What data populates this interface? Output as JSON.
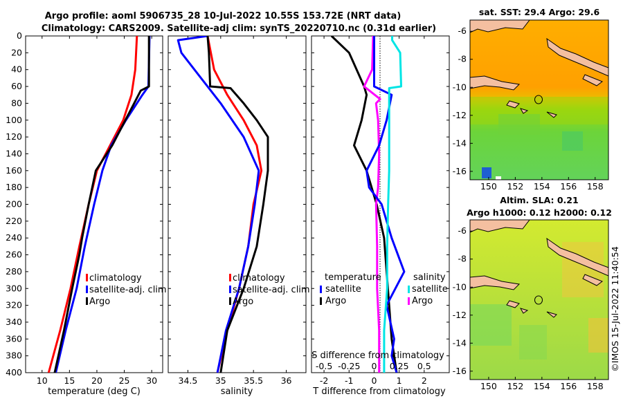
{
  "title_line1": "Argo profile: aoml 5906735_28 10-Jul-2022 10.55S 153.72E (NRT data)",
  "title_line2": "Climatology: CARS2009. Satellite-adj clim: synTS_20220710.nc (0.31d earlier)",
  "watermark": "©IMOS 15-Jul-2022 11:40:54",
  "colors": {
    "climatology": "#ff0000",
    "satellite": "#0000ff",
    "argo": "#000000",
    "t_diff": "#00e5e5",
    "s_diff": "#ff00ff",
    "land": "#f4bfa0"
  },
  "legend": {
    "climatology": "climatology",
    "satellite_adj": "satellite-adj. clim",
    "argo": "Argo",
    "temperature": "temperature",
    "salinity": "salinity",
    "satellite": "satellite"
  },
  "chart_data": [
    {
      "type": "line",
      "title": "",
      "xlabel": "temperature (deg C)",
      "ylabel": "",
      "xlim": [
        7,
        32
      ],
      "ylim": [
        400,
        0
      ],
      "xticks": [
        "10",
        "15",
        "20",
        "25",
        "30"
      ],
      "yticks": [
        "0",
        "20",
        "40",
        "60",
        "80",
        "100",
        "120",
        "140",
        "160",
        "180",
        "200",
        "220",
        "240",
        "260",
        "280",
        "300",
        "320",
        "340",
        "360",
        "380",
        "400"
      ],
      "series": [
        {
          "name": "climatology",
          "depth": [
            0,
            40,
            70,
            100,
            130,
            160,
            200,
            250,
            300,
            350,
            400
          ],
          "values": [
            27.3,
            27.0,
            26.3,
            24.8,
            22.4,
            20.0,
            18.5,
            16.8,
            15.2,
            13.3,
            11.2
          ]
        },
        {
          "name": "satellite-adj. clim",
          "depth": [
            0,
            60,
            70,
            100,
            130,
            160,
            200,
            250,
            300,
            350,
            400
          ],
          "values": [
            29.6,
            29.4,
            28.3,
            25.3,
            22.6,
            21.0,
            19.5,
            17.8,
            16.3,
            14.3,
            12.5
          ]
        },
        {
          "name": "Argo",
          "depth": [
            0,
            60,
            65,
            80,
            100,
            130,
            160,
            200,
            240,
            260,
            300,
            350,
            400
          ],
          "values": [
            29.5,
            29.5,
            28.0,
            26.8,
            25.2,
            22.8,
            19.8,
            18.5,
            17.3,
            16.8,
            15.5,
            14.0,
            12.3
          ]
        }
      ]
    },
    {
      "type": "line",
      "title": "",
      "xlabel": "salinity",
      "ylabel": "",
      "xlim": [
        34.2,
        36.3
      ],
      "ylim": [
        400,
        0
      ],
      "xticks": [
        "34.5",
        "35",
        "35.5",
        "36"
      ],
      "series": [
        {
          "name": "climatology",
          "depth": [
            0,
            40,
            70,
            100,
            130,
            160,
            200,
            250,
            300,
            350,
            400
          ],
          "values": [
            34.8,
            34.9,
            35.1,
            35.35,
            35.55,
            35.62,
            35.5,
            35.42,
            35.28,
            35.1,
            34.95
          ]
        },
        {
          "name": "satellite-adj. clim",
          "depth": [
            0,
            5,
            20,
            50,
            80,
            120,
            160,
            200,
            250,
            300,
            350,
            400
          ],
          "values": [
            34.8,
            34.35,
            34.4,
            34.7,
            35.0,
            35.35,
            35.58,
            35.52,
            35.42,
            35.28,
            35.08,
            34.95
          ]
        },
        {
          "name": "Argo",
          "depth": [
            0,
            20,
            60,
            62,
            80,
            100,
            120,
            160,
            200,
            250,
            300,
            350,
            400
          ],
          "values": [
            34.8,
            34.82,
            34.84,
            35.15,
            35.35,
            35.55,
            35.72,
            35.72,
            35.65,
            35.55,
            35.35,
            35.1,
            35.0
          ]
        }
      ]
    },
    {
      "type": "line",
      "title": "",
      "xlabel": "T difference from climatology",
      "ylabel": "",
      "xlim": [
        -2.5,
        3.0
      ],
      "ylim": [
        400,
        0
      ],
      "xticks": [
        "-2",
        "-1",
        "0",
        "1",
        "2"
      ],
      "s_axis_label": "S difference from climatology",
      "s_xlim": [
        -0.625,
        0.75
      ],
      "s_ticks": [
        "-0.5",
        "-0.25",
        "0",
        "0.25",
        "0.5"
      ],
      "zero_line": true,
      "series": [
        {
          "name": "T argo-clim",
          "depth": [
            0,
            20,
            60,
            70,
            100,
            130,
            160,
            200,
            240,
            280,
            320,
            360,
            400
          ],
          "values": [
            -1.7,
            -1.0,
            -0.4,
            -0.3,
            -0.5,
            -0.8,
            -0.3,
            0.1,
            0.4,
            0.5,
            0.6,
            0.7,
            0.9
          ]
        },
        {
          "name": "S argo-clim",
          "depth": [
            0,
            40,
            60,
            75,
            80,
            100,
            140,
            180,
            200,
            250,
            300,
            350,
            400
          ],
          "values": [
            -0.01,
            -0.02,
            -0.1,
            0.06,
            0.02,
            0.04,
            0.05,
            0.04,
            0.02,
            0.03,
            0.03,
            0.05,
            0.05
          ]
        },
        {
          "name": "T argo-satellite",
          "depth": [
            0,
            60,
            70,
            100,
            130,
            160,
            180,
            200,
            240,
            280,
            320,
            360,
            380,
            400
          ],
          "values": [
            0,
            0,
            0.7,
            0.5,
            0.2,
            -0.3,
            -0.2,
            0.3,
            0.7,
            1.2,
            0.5,
            0.8,
            0.7,
            0.9
          ]
        },
        {
          "name": "S argo-satellite",
          "depth": [
            0,
            5,
            20,
            60,
            62,
            100,
            160,
            200,
            250,
            300,
            350,
            400
          ],
          "values": [
            0.18,
            0.18,
            0.26,
            0.27,
            0.15,
            0.15,
            0.15,
            0.14,
            0.13,
            0.13,
            0.1,
            0.1
          ]
        }
      ]
    }
  ],
  "map_sst": {
    "title": "sat. SST: 29.4 Argo: 29.6",
    "xticks": [
      "150",
      "152",
      "154",
      "156",
      "158"
    ],
    "yticks": [
      "-6",
      "-8",
      "-10",
      "-12",
      "-14",
      "-16"
    ]
  },
  "map_sla": {
    "title_line1": "Altim. SLA: 0.21",
    "title_line2": "Argo h1000: 0.12 h2000: 0.12",
    "xticks": [
      "150",
      "152",
      "154",
      "156",
      "158"
    ],
    "yticks": [
      "-6",
      "-8",
      "-10",
      "-12",
      "-14",
      "-16"
    ]
  }
}
